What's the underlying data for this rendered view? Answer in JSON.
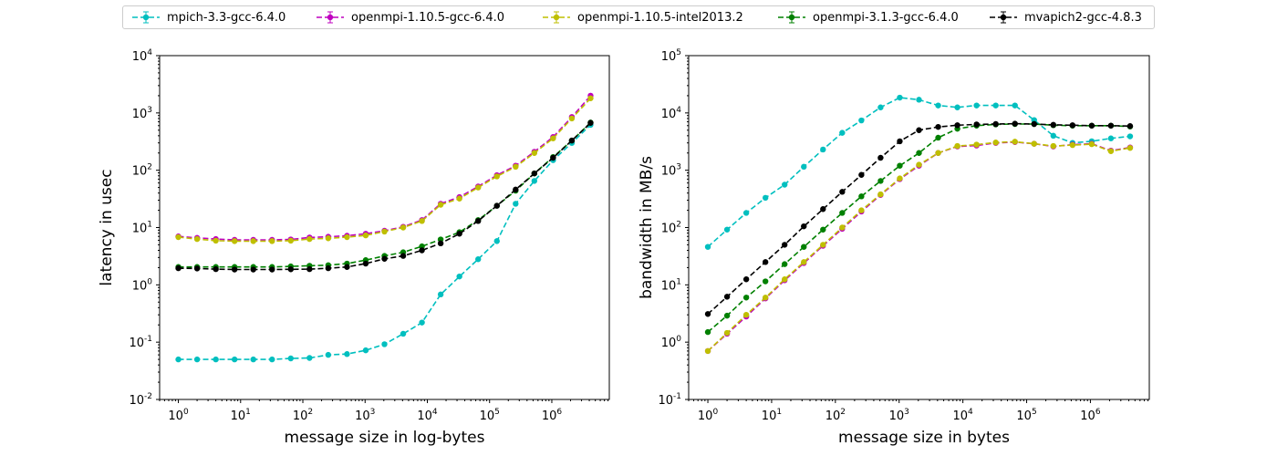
{
  "legend": [
    {
      "label": "mpich-3.3-gcc-6.4.0",
      "color": "#00bfbf"
    },
    {
      "label": "openmpi-1.10.5-gcc-6.4.0",
      "color": "#bf00bf"
    },
    {
      "label": "openmpi-1.10.5-intel2013.2",
      "color": "#bfbf00"
    },
    {
      "label": "openmpi-3.1.3-gcc-6.4.0",
      "color": "#008000"
    },
    {
      "label": "mvapich2-gcc-4.8.3",
      "color": "#000000"
    }
  ],
  "chart_data": [
    {
      "type": "line",
      "xlabel": "message size in log-bytes",
      "ylabel": "latency in usec",
      "xscale": "log",
      "yscale": "log",
      "xlim": [
        0.5,
        8388608
      ],
      "ylim": [
        0.01,
        10000
      ],
      "x_tick_labels": [
        "10^0",
        "10^1",
        "10^2",
        "10^3",
        "10^4",
        "10^5",
        "10^6"
      ],
      "y_tick_labels": [
        "10^-2",
        "10^-1",
        "10^0",
        "10^1",
        "10^2",
        "10^3",
        "10^4"
      ],
      "x": [
        1,
        2,
        4,
        8,
        16,
        32,
        64,
        128,
        256,
        512,
        1024,
        2048,
        4096,
        8192,
        16384,
        32768,
        65536,
        131072,
        262144,
        524288,
        1048576,
        2097152,
        4194304
      ],
      "series": [
        {
          "name": "mpich-3.3-gcc-6.4.0",
          "values": [
            0.05,
            0.05,
            0.05,
            0.05,
            0.05,
            0.05,
            0.052,
            0.053,
            0.06,
            0.062,
            0.072,
            0.092,
            0.14,
            0.22,
            0.68,
            1.4,
            2.8,
            5.8,
            26,
            65,
            150,
            300,
            620
          ]
        },
        {
          "name": "openmpi-1.10.5-gcc-6.4.0",
          "values": [
            7.0,
            6.6,
            6.3,
            6.1,
            6.1,
            6.1,
            6.2,
            6.7,
            6.9,
            7.2,
            7.8,
            8.8,
            10.3,
            13.5,
            26,
            34,
            52,
            82,
            120,
            210,
            380,
            850,
            2000
          ]
        },
        {
          "name": "openmpi-1.10.5-intel2013.2",
          "values": [
            6.8,
            6.3,
            5.9,
            5.8,
            5.8,
            5.8,
            5.9,
            6.3,
            6.5,
            6.8,
            7.3,
            8.5,
            10.0,
            13.0,
            25,
            32,
            50,
            78,
            115,
            200,
            360,
            800,
            1800
          ]
        },
        {
          "name": "openmpi-3.1.3-gcc-6.4.0",
          "values": [
            2.05,
            2.05,
            2.05,
            2.05,
            2.05,
            2.05,
            2.1,
            2.15,
            2.2,
            2.35,
            2.7,
            3.2,
            3.7,
            4.7,
            6.2,
            8.3,
            13.5,
            24,
            44,
            88,
            170,
            330,
            680
          ]
        },
        {
          "name": "mvapich2-gcc-4.8.3",
          "values": [
            1.95,
            1.93,
            1.88,
            1.85,
            1.85,
            1.85,
            1.87,
            1.88,
            1.95,
            2.05,
            2.35,
            2.85,
            3.2,
            4.0,
            5.3,
            7.8,
            13.0,
            24,
            46,
            88,
            165,
            330,
            670
          ]
        }
      ]
    },
    {
      "type": "line",
      "xlabel": "message size in bytes",
      "ylabel": "bandwidth in MB/s",
      "xscale": "log",
      "yscale": "log",
      "xlim": [
        0.5,
        8388608
      ],
      "ylim": [
        0.1,
        100000
      ],
      "x_tick_labels": [
        "10^0",
        "10^1",
        "10^2",
        "10^3",
        "10^4",
        "10^5",
        "10^6"
      ],
      "y_tick_labels": [
        "10^-1",
        "10^0",
        "10^1",
        "10^2",
        "10^3",
        "10^4",
        "10^5"
      ],
      "x": [
        1,
        2,
        4,
        8,
        16,
        32,
        64,
        128,
        256,
        512,
        1024,
        2048,
        4096,
        8192,
        16384,
        32768,
        65536,
        131072,
        262144,
        524288,
        1048576,
        2097152,
        4194304
      ],
      "series": [
        {
          "name": "mpich-3.3-gcc-6.4.0",
          "values": [
            46,
            92,
            180,
            330,
            560,
            1150,
            2300,
            4500,
            7400,
            12500,
            18500,
            17000,
            13500,
            12500,
            13500,
            13500,
            13500,
            7500,
            4000,
            3000,
            3200,
            3600,
            3900
          ]
        },
        {
          "name": "openmpi-1.10.5-gcc-6.4.0",
          "values": [
            0.7,
            1.4,
            2.8,
            5.8,
            12,
            24,
            48,
            95,
            190,
            370,
            700,
            1200,
            2000,
            2600,
            2700,
            3000,
            3100,
            2900,
            2600,
            2800,
            2900,
            2200,
            2500
          ]
        },
        {
          "name": "openmpi-1.10.5-intel2013.2",
          "values": [
            0.7,
            1.45,
            3.0,
            6.0,
            12.5,
            25,
            50,
            100,
            200,
            380,
            720,
            1250,
            2000,
            2650,
            2800,
            3050,
            3150,
            2900,
            2650,
            2750,
            2850,
            2150,
            2450
          ]
        },
        {
          "name": "openmpi-3.1.3-gcc-6.4.0",
          "values": [
            1.5,
            2.9,
            6.0,
            11.5,
            23,
            46,
            92,
            180,
            350,
            650,
            1200,
            2000,
            3700,
            5300,
            6000,
            6300,
            6400,
            6400,
            6100,
            6000,
            6000,
            6000,
            5800
          ]
        },
        {
          "name": "mvapich2-gcc-4.8.3",
          "values": [
            3.1,
            6.2,
            12.5,
            25,
            50,
            105,
            210,
            420,
            830,
            1650,
            3200,
            5000,
            5700,
            6100,
            6300,
            6400,
            6500,
            6400,
            6200,
            6100,
            6000,
            6000,
            5900
          ]
        }
      ]
    }
  ]
}
